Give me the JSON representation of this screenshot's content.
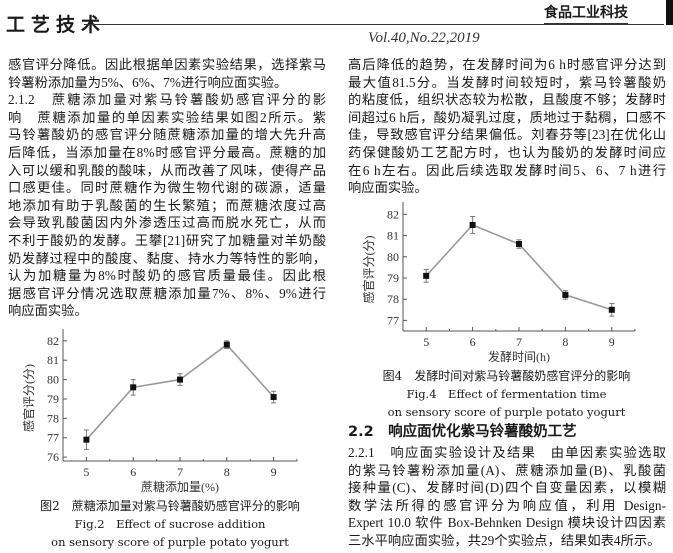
{
  "header": {
    "section_name": "工艺技术",
    "journal_logo": "食品工业科技",
    "volume": "Vol.40,No.22,2019"
  },
  "left_text": [
    "感官评分降低。因此根据单因素实验结果，选择紫马",
    "铃薯粉添加量为5%、6%、7%进行响应面实验。",
    "2.1.2　蔗糖添加量对紫马铃薯酸奶感官评分的影",
    "响　蔗糖添加量的单因素实验结果如图2所示。紫",
    "马铃薯酸奶的感官评分随蔗糖添加量的增大先升高",
    "后降低，当添加量在8%时感官评分最高。蔗糖的加",
    "入可以缓和乳酸的酸味，从而改善了风味，使得产品",
    "口感更佳。同时蔗糖作为微生物代谢的碳源，适量",
    "地添加有助于乳酸菌的生长繁殖；而蔗糖浓度过高",
    "会导致乳酸菌因内外渗透压过高而脱水死亡，从而",
    "不利于酸奶的发酵。王攀[21]研究了加糖量对羊奶酸",
    "奶发酵过程中的酸度、黏度、持水力等特性的影响，",
    "认为加糖量为8%时酸奶的感官质量最佳。因此根",
    "据感官评分情况选取蔗糖添加量7%、8%、9%进行",
    "响应面实验。"
  ],
  "right_text": [
    "高后降低的趋势，在发酵时间为6 h时感官评分达到",
    "最大值81.5分。当发酵时间较短时，紫马铃薯酸奶",
    "的粘度低，组织状态较为松散，且酸度不够；发酵时",
    "间超过6 h后，酸奶凝乳过度，质地过于黏稠，口感不",
    "佳，导致感官评分结果偏低。刘春芬等[23]在优化山",
    "药保健酸奶工艺配方时，也认为酸奶的发酵时间应",
    "在6 h左右。因此后续选取发酵时间5、6、7 h进行",
    "响应面实验。"
  ],
  "section_2_2": {
    "heading": "2.2　响应面优化紫马铃薯酸奶工艺",
    "lines": [
      "2.2.1　响应面实验设计及结果　由单因素实验选取",
      "的紫马铃薯粉添加量(A)、蔗糖添加量(B)、乳酸菌",
      "接种量(C)、发酵时间(D)四个自变量因素，以模糊",
      "数学法所得的感官评分为响应值，利用 Design-",
      "Expert 10.0 软件 Box-Behnken Design 模块设计四因素",
      "三水平响应面实验，共29个实验点，结果如表4所示。"
    ]
  },
  "figures": {
    "fig2": {
      "caption_cn": "图2　蔗糖添加量对紫马铃薯酸奶感官评分的影响",
      "caption_en_1": "Fig.2　Effect of sucrose addition",
      "caption_en_2": "on sensory score of purple potato yogurt"
    },
    "fig4": {
      "caption_cn": "图4　发酵时间对紫马铃薯酸奶感官评分的影响",
      "caption_en_1": "Fig.4　Effect of fermentation time",
      "caption_en_2": "on sensory score of purple potato yogurt"
    }
  },
  "chart_data": [
    {
      "type": "line",
      "xlabel": "蔗糖添加量(%)",
      "ylabel": "感官评分(分)",
      "x": [
        5,
        6,
        7,
        8,
        9
      ],
      "y": [
        76.9,
        79.6,
        80.0,
        81.8,
        79.1
      ],
      "error": [
        0.5,
        0.4,
        0.3,
        0.2,
        0.3
      ],
      "xlim": [
        4.5,
        9.5
      ],
      "ylim": [
        75.8,
        82.3
      ],
      "yticks": [
        76,
        77,
        78,
        79,
        80,
        81,
        82
      ],
      "xticks": [
        5,
        6,
        7,
        8,
        9
      ],
      "grid": false,
      "line_color": "#999999",
      "marker_color": "#111111"
    },
    {
      "type": "line",
      "xlabel": "发酵时间(h)",
      "ylabel": "感官评分(分)",
      "x": [
        5,
        6,
        7,
        8,
        9
      ],
      "y": [
        79.1,
        81.5,
        80.6,
        78.2,
        77.5
      ],
      "error": [
        0.3,
        0.4,
        0.2,
        0.2,
        0.3
      ],
      "xlim": [
        4.5,
        9.5
      ],
      "ylim": [
        76.5,
        82.3
      ],
      "yticks": [
        77,
        78,
        79,
        80,
        81,
        82
      ],
      "xticks": [
        5,
        6,
        7,
        8,
        9
      ],
      "grid": false,
      "line_color": "#999999",
      "marker_color": "#111111"
    }
  ]
}
